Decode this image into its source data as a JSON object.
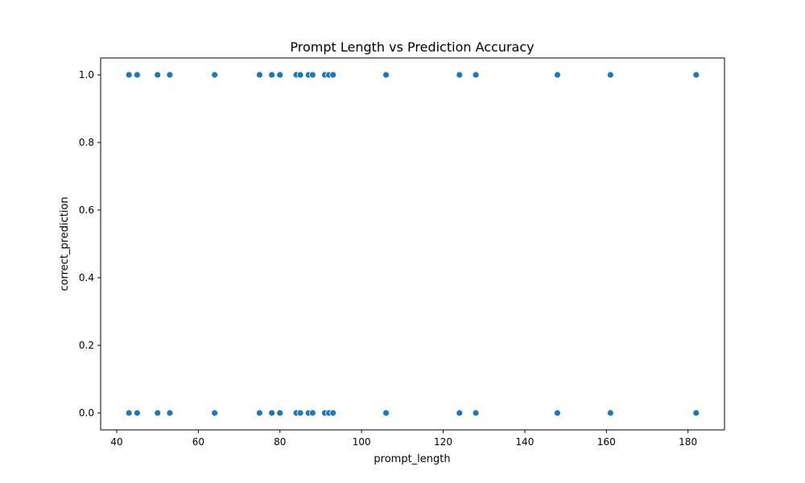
{
  "chart_data": {
    "type": "scatter",
    "title": "Prompt Length vs Prediction Accuracy",
    "xlabel": "prompt_length",
    "ylabel": "correct_prediction",
    "xlim": [
      36.05,
      188.95
    ],
    "ylim": [
      -0.05,
      1.05
    ],
    "xticks": [
      40,
      60,
      80,
      100,
      120,
      140,
      160,
      180
    ],
    "yticks": [
      0.0,
      0.2,
      0.4,
      0.6,
      0.8,
      1.0
    ],
    "ytick_labels": [
      "0.0",
      "0.2",
      "0.4",
      "0.6",
      "0.8",
      "1.0"
    ],
    "grid": false,
    "marker_color": "#1f77b4",
    "series": [
      {
        "points": [
          {
            "x": 43,
            "y": 1
          },
          {
            "x": 45,
            "y": 1
          },
          {
            "x": 50,
            "y": 1
          },
          {
            "x": 53,
            "y": 1
          },
          {
            "x": 64,
            "y": 1
          },
          {
            "x": 75,
            "y": 1
          },
          {
            "x": 78,
            "y": 1
          },
          {
            "x": 80,
            "y": 1
          },
          {
            "x": 84,
            "y": 1
          },
          {
            "x": 85,
            "y": 1
          },
          {
            "x": 87,
            "y": 1
          },
          {
            "x": 88,
            "y": 1
          },
          {
            "x": 91,
            "y": 1
          },
          {
            "x": 92,
            "y": 1
          },
          {
            "x": 93,
            "y": 1
          },
          {
            "x": 106,
            "y": 1
          },
          {
            "x": 124,
            "y": 1
          },
          {
            "x": 128,
            "y": 1
          },
          {
            "x": 148,
            "y": 1
          },
          {
            "x": 161,
            "y": 1
          },
          {
            "x": 182,
            "y": 1
          },
          {
            "x": 43,
            "y": 0
          },
          {
            "x": 45,
            "y": 0
          },
          {
            "x": 50,
            "y": 0
          },
          {
            "x": 53,
            "y": 0
          },
          {
            "x": 64,
            "y": 0
          },
          {
            "x": 75,
            "y": 0
          },
          {
            "x": 78,
            "y": 0
          },
          {
            "x": 80,
            "y": 0
          },
          {
            "x": 84,
            "y": 0
          },
          {
            "x": 85,
            "y": 0
          },
          {
            "x": 87,
            "y": 0
          },
          {
            "x": 88,
            "y": 0
          },
          {
            "x": 91,
            "y": 0
          },
          {
            "x": 92,
            "y": 0
          },
          {
            "x": 93,
            "y": 0
          },
          {
            "x": 106,
            "y": 0
          },
          {
            "x": 124,
            "y": 0
          },
          {
            "x": 128,
            "y": 0
          },
          {
            "x": 148,
            "y": 0
          },
          {
            "x": 161,
            "y": 0
          },
          {
            "x": 182,
            "y": 0
          }
        ]
      }
    ]
  }
}
